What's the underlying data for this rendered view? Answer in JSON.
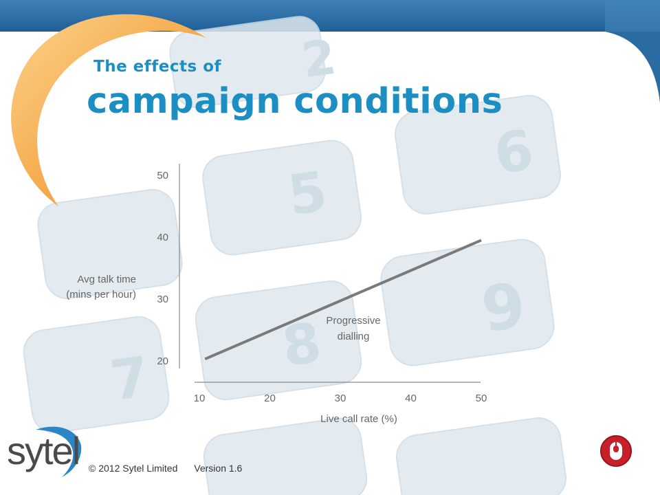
{
  "slide": {
    "title_small": "The effects of",
    "title_large": "campaign conditions"
  },
  "chart_data": {
    "type": "line",
    "title": "",
    "xlabel": "Live call rate (%)",
    "ylabel": [
      "Avg talk time",
      "(mins per hour)"
    ],
    "x_ticks": [
      10,
      20,
      30,
      40,
      50
    ],
    "y_ticks": [
      20,
      30,
      40,
      50
    ],
    "xlim": [
      10,
      50
    ],
    "ylim": [
      20,
      50
    ],
    "grid": false,
    "series": [
      {
        "name": "Progressive dialling",
        "label_lines": [
          "Progressive",
          "dialling"
        ],
        "x": [
          10.8,
          50
        ],
        "y": [
          20.2,
          39.4
        ],
        "color": "#7a7a7a"
      }
    ]
  },
  "footer": {
    "copyright": "© 2012 Sytel Limited",
    "version": "Version 1.6"
  },
  "logo": {
    "text": "sytel"
  },
  "colors": {
    "title": "#1c8ec2",
    "header_bar": "#2d6fa6",
    "swoosh": "#f5b04a",
    "badge": "#c8202a",
    "keypad": "#dce6ec"
  }
}
